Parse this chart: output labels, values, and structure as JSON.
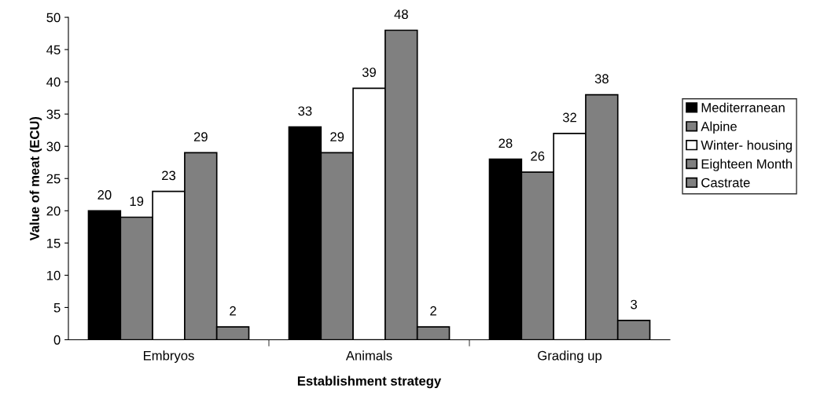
{
  "chart_data": {
    "type": "bar",
    "xlabel": "Establishment strategy",
    "ylabel": "Value of meat (ECU)",
    "categories": [
      "Embryos",
      "Animals",
      "Grading up"
    ],
    "series": [
      {
        "name": "Mediterranean",
        "color": "#000000",
        "values": [
          20,
          33,
          28
        ]
      },
      {
        "name": "Alpine",
        "color": "#808080",
        "values": [
          19,
          29,
          26
        ]
      },
      {
        "name": "Winter- housing",
        "color": "#ffffff",
        "values": [
          23,
          39,
          32
        ]
      },
      {
        "name": "Eighteen Month",
        "color": "#808080",
        "values": [
          29,
          48,
          38
        ]
      },
      {
        "name": "Castrate",
        "color": "#808080",
        "values": [
          2,
          2,
          3
        ]
      }
    ],
    "ylim": [
      0,
      50
    ],
    "yticks": [
      0,
      5,
      10,
      15,
      20,
      25,
      30,
      35,
      40,
      45,
      50
    ],
    "data_labels": true,
    "grid": false,
    "legend": "right"
  }
}
